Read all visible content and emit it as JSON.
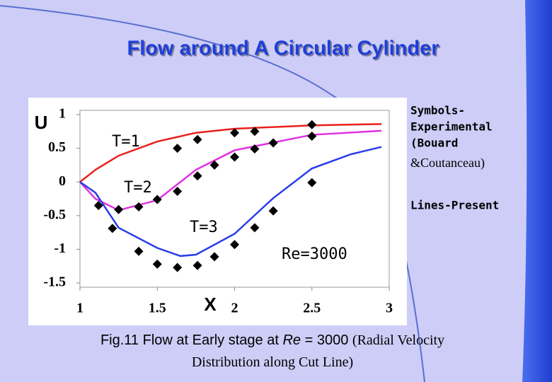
{
  "chart_data": {
    "type": "line",
    "title": "Flow around A Circular Cylinder",
    "xlabel": "X",
    "ylabel": "U",
    "xlim": [
      1,
      3
    ],
    "ylim": [
      -1.5,
      1
    ],
    "xticks": [
      1,
      1.5,
      2,
      2.5,
      3
    ],
    "yticks": [
      -1.5,
      -1,
      -0.5,
      0,
      0.5,
      1
    ],
    "series": [
      {
        "name": "T=1",
        "color": "#e8201c",
        "x": [
          1,
          1.1,
          1.25,
          1.5,
          1.75,
          2,
          2.5,
          2.95
        ],
        "values": [
          0,
          0.18,
          0.39,
          0.6,
          0.73,
          0.79,
          0.84,
          0.86
        ]
      },
      {
        "name": "T=2",
        "color": "#e030e0",
        "x": [
          1,
          1.1,
          1.25,
          1.5,
          1.75,
          2,
          2.5,
          2.95
        ],
        "values": [
          0,
          -0.25,
          -0.42,
          -0.27,
          0.18,
          0.47,
          0.7,
          0.76
        ]
      },
      {
        "name": "T=3",
        "color": "#2a3de8",
        "x": [
          1,
          1.1,
          1.25,
          1.5,
          1.65,
          1.75,
          2,
          2.25,
          2.5,
          2.75,
          2.95
        ],
        "values": [
          0,
          -0.16,
          -0.68,
          -0.98,
          -1.1,
          -1.08,
          -0.77,
          -0.24,
          0.2,
          0.41,
          0.52
        ]
      },
      {
        "type": "scatter",
        "color": "#000000",
        "x": [
          1.63,
          1.76,
          2.0,
          2.13,
          2.5
        ],
        "values": [
          0.5,
          0.63,
          0.73,
          0.75,
          0.85
        ]
      },
      {
        "type": "scatter",
        "color": "#000000",
        "x": [
          1.12,
          1.25,
          1.38,
          1.5,
          1.63,
          1.76,
          1.87,
          2.0,
          2.13,
          2.25,
          2.5
        ],
        "values": [
          -0.35,
          -0.41,
          -0.37,
          -0.26,
          -0.14,
          0.09,
          0.25,
          0.37,
          0.49,
          0.58,
          0.68
        ]
      },
      {
        "type": "scatter",
        "color": "#000000",
        "x": [
          1.21,
          1.38,
          1.5,
          1.63,
          1.76,
          1.87,
          2.0,
          2.13,
          2.25,
          2.5
        ],
        "values": [
          -0.69,
          -1.03,
          -1.22,
          -1.27,
          -1.24,
          -1.11,
          -0.93,
          -0.68,
          -0.43,
          -0.01
        ]
      }
    ],
    "annotations": [
      "Re=3000"
    ],
    "notes": [
      "Symbols-",
      "Experimental",
      "(Bouard",
      "&Coutanceau)",
      "Lines-Present"
    ]
  },
  "caption": {
    "start": "Fig.11 Flow at Early stage at",
    "italic": "Re",
    "middle": "= 3000",
    "paren": "(Radial Velocity",
    "line2": "Distribution along Cut Line)"
  }
}
